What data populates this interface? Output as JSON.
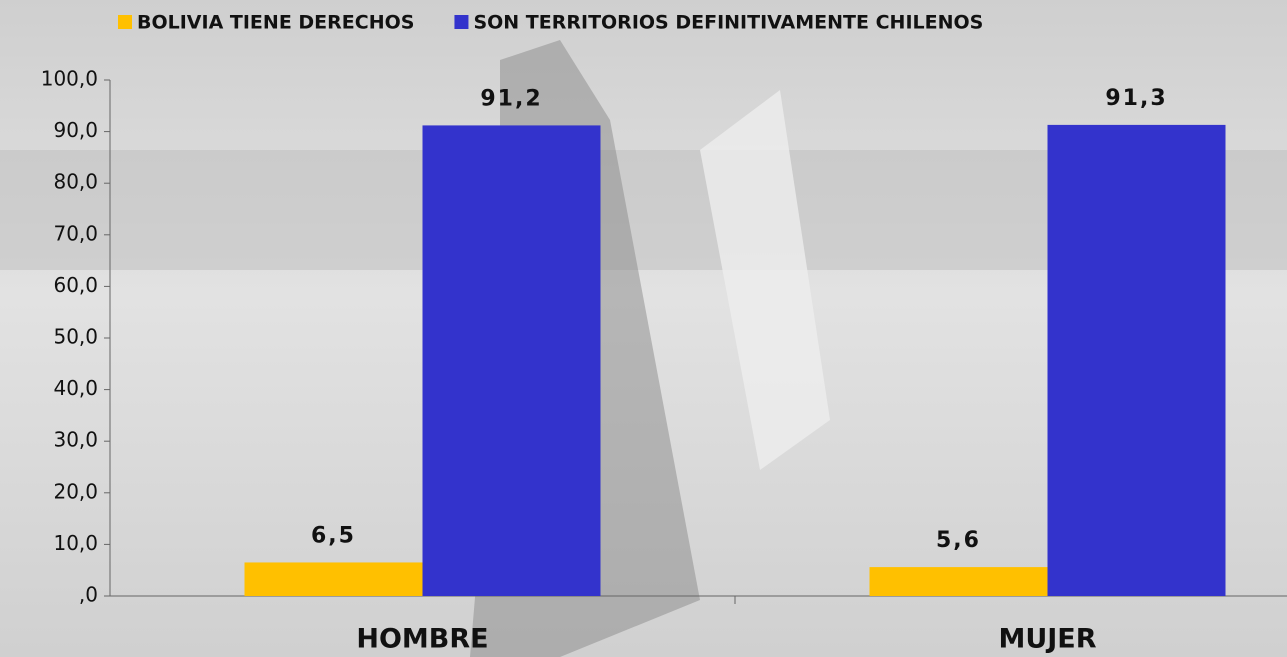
{
  "chart_data": {
    "type": "bar",
    "categories": [
      "HOMBRE",
      "MUJER"
    ],
    "series": [
      {
        "name": "BOLIVIA TIENE DERECHOS",
        "color": "#ffc000",
        "values": [
          6.5,
          5.6
        ],
        "value_labels": [
          "6,5",
          "5,6"
        ]
      },
      {
        "name": "SON TERRITORIOS DEFINITIVAMENTE CHILENOS",
        "color": "#3333cc",
        "values": [
          91.2,
          91.3
        ],
        "value_labels": [
          "91,2",
          "91,3"
        ]
      }
    ],
    "ylim": [
      0,
      100
    ],
    "yticks": [
      {
        "value": 0,
        "label": ",0"
      },
      {
        "value": 10,
        "label": "10,0"
      },
      {
        "value": 20,
        "label": "20,0"
      },
      {
        "value": 30,
        "label": "30,0"
      },
      {
        "value": 40,
        "label": "40,0"
      },
      {
        "value": 50,
        "label": "50,0"
      },
      {
        "value": 60,
        "label": "60,0"
      },
      {
        "value": 70,
        "label": "70,0"
      },
      {
        "value": 80,
        "label": "80,0"
      },
      {
        "value": 90,
        "label": "90,0"
      },
      {
        "value": 100,
        "label": "100,0"
      }
    ],
    "legend": "top"
  }
}
